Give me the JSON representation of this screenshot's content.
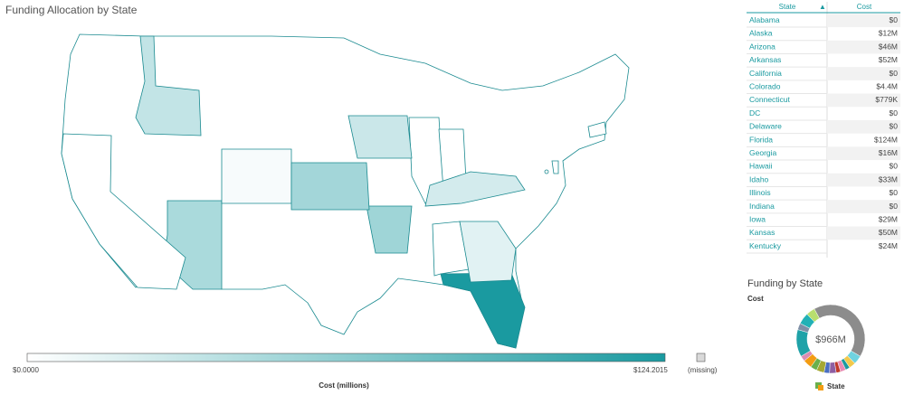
{
  "map": {
    "title": "Funding Allocation by State",
    "states": [
      {
        "name": "Alabama",
        "value": 0
      },
      {
        "name": "Arizona",
        "value": 46
      },
      {
        "name": "Arkansas",
        "value": 52
      },
      {
        "name": "California",
        "value": 0
      },
      {
        "name": "Colorado",
        "value": 4.4
      },
      {
        "name": "Connecticut",
        "value": 0.779
      },
      {
        "name": "DC",
        "value": 0
      },
      {
        "name": "Delaware",
        "value": 0
      },
      {
        "name": "Florida",
        "value": 124
      },
      {
        "name": "Georgia",
        "value": 16
      },
      {
        "name": "Idaho",
        "value": 33
      },
      {
        "name": "Illinois",
        "value": 0
      },
      {
        "name": "Indiana",
        "value": 0
      },
      {
        "name": "Iowa",
        "value": 29
      },
      {
        "name": "Kansas",
        "value": 50
      },
      {
        "name": "Kentucky",
        "value": 24
      }
    ],
    "scale_min": 0,
    "scale_max": 124.2015,
    "color_low": "#ffffff",
    "color_high": "#1a9aa0",
    "missing_color": "#d9d9d9",
    "legend": {
      "min_label": "$0.0000",
      "max_label": "$124.2015",
      "missing_label": "(missing)",
      "title": "Cost (millions)"
    }
  },
  "table": {
    "headers": [
      "State",
      "Cost"
    ],
    "rows": [
      [
        "Alabama",
        "$0"
      ],
      [
        "Alaska",
        "$12M"
      ],
      [
        "Arizona",
        "$46M"
      ],
      [
        "Arkansas",
        "$52M"
      ],
      [
        "California",
        "$0"
      ],
      [
        "Colorado",
        "$4.4M"
      ],
      [
        "Connecticut",
        "$779K"
      ],
      [
        "DC",
        "$0"
      ],
      [
        "Delaware",
        "$0"
      ],
      [
        "Florida",
        "$124M"
      ],
      [
        "Georgia",
        "$16M"
      ],
      [
        "Hawaii",
        "$0"
      ],
      [
        "Idaho",
        "$33M"
      ],
      [
        "Illinois",
        "$0"
      ],
      [
        "Indiana",
        "$0"
      ],
      [
        "Iowa",
        "$29M"
      ],
      [
        "Kansas",
        "$50M"
      ],
      [
        "Kentucky",
        "$24M"
      ]
    ]
  },
  "donut": {
    "title": "Funding by State",
    "measure_label": "Cost",
    "center_label": "$966M",
    "legend_label": "State",
    "values": [
      400,
      40,
      30,
      20,
      25,
      20,
      30,
      25,
      35,
      30,
      40,
      25,
      124,
      30,
      52,
      40
    ],
    "colors": [
      "#8c8c8c",
      "#6fd3e0",
      "#f2c94c",
      "#1a9aa0",
      "#e88bb5",
      "#c0392b",
      "#8e5ea2",
      "#4a6fc1",
      "#a5a832",
      "#6ab04c",
      "#f39c12",
      "#d98cb3",
      "#1fa2a8",
      "#7f8fa6",
      "#22b1b6",
      "#b8de6f"
    ]
  }
}
